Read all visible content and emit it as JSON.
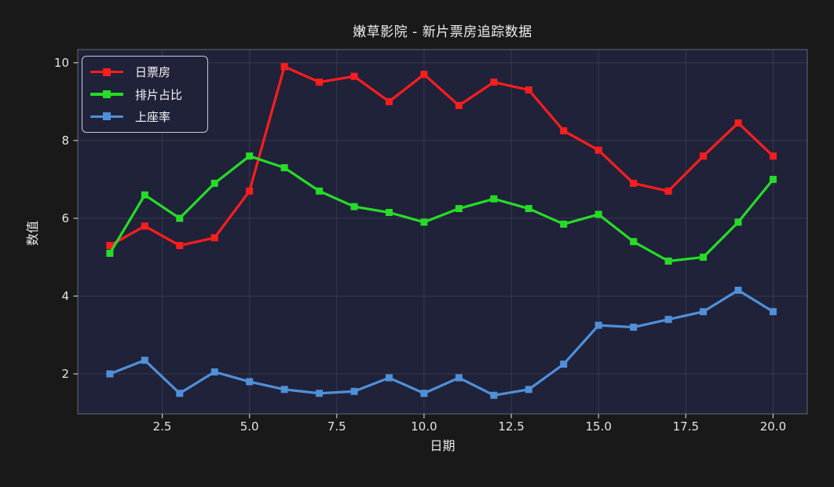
{
  "window": {
    "title": "嫩草影院 - 新片票房追踪数据"
  },
  "colors": {
    "figure_background": "#191919",
    "plot_background": "#20223a",
    "grid": "rgba(255,255,255,0.10)",
    "spine": "rgba(255,255,255,0.28)",
    "tick": "#c8c8c8",
    "tick_label": "#e4e4e4",
    "title_text": "#eeeeee",
    "series_red": "#fe1d1d",
    "series_green": "#27dc27",
    "series_blue": "#4f90d9"
  },
  "chart_data": {
    "type": "line",
    "title": "嫩草影院 - 新片票房追踪数据",
    "xlabel": "日期",
    "ylabel": "数值",
    "x": [
      1,
      2,
      3,
      4,
      5,
      6,
      7,
      8,
      9,
      10,
      11,
      12,
      13,
      14,
      15,
      16,
      17,
      18,
      19,
      20
    ],
    "series": [
      {
        "name": "日票房",
        "key": "daily-box-office",
        "color": "#fe1d1d",
        "marker": "square",
        "values": [
          5.3,
          5.8,
          5.3,
          5.5,
          6.7,
          9.9,
          9.5,
          9.65,
          9.0,
          9.7,
          8.9,
          9.5,
          9.3,
          8.25,
          7.75,
          6.9,
          6.7,
          7.6,
          8.45,
          7.6
        ]
      },
      {
        "name": "排片占比",
        "key": "screening-share",
        "color": "#27dc27",
        "marker": "square",
        "values": [
          5.1,
          6.6,
          6.0,
          6.9,
          7.6,
          7.3,
          6.7,
          6.3,
          6.15,
          5.9,
          6.25,
          6.5,
          6.25,
          5.85,
          6.1,
          5.4,
          4.9,
          5.0,
          5.9,
          7.0
        ]
      },
      {
        "name": "上座率",
        "key": "attendance-rate",
        "color": "#4f90d9",
        "marker": "square",
        "values": [
          2.0,
          2.35,
          1.5,
          2.05,
          1.8,
          1.6,
          1.5,
          1.55,
          1.9,
          1.5,
          1.9,
          1.45,
          1.6,
          2.25,
          3.25,
          3.2,
          3.4,
          3.6,
          4.15,
          3.6
        ]
      }
    ],
    "xticks": [
      2.5,
      5.0,
      7.5,
      10.0,
      12.5,
      15.0,
      17.5,
      20.0
    ],
    "xtick_labels": [
      "2.5",
      "5.0",
      "7.5",
      "10.0",
      "12.5",
      "15.0",
      "17.5",
      "20.0"
    ],
    "yticks": [
      2,
      4,
      6,
      8,
      10
    ],
    "ytick_labels": [
      "2",
      "4",
      "6",
      "8",
      "10"
    ],
    "xlim": [
      0.08,
      20.98
    ],
    "ylim": [
      0.97,
      10.34
    ],
    "grid": true,
    "legend_position": "upper-left"
  }
}
